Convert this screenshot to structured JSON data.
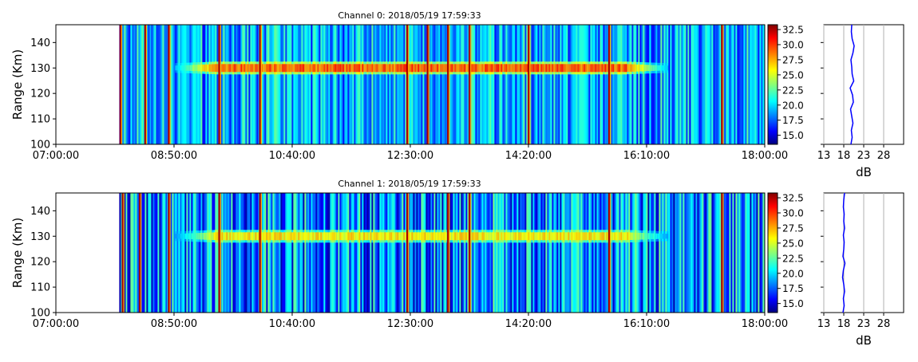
{
  "chart_data": [
    {
      "type": "heatmap",
      "title": "Channel 0: 2018/05/19 17:59:33",
      "ylabel": "Range (Km)",
      "x_ticks": [
        "07:00:00",
        "08:50:00",
        "10:40:00",
        "12:30:00",
        "14:20:00",
        "16:10:00",
        "18:00:00"
      ],
      "y_ticks": [
        100,
        110,
        120,
        130,
        140
      ],
      "ylim": [
        100,
        147
      ],
      "data_start": "07:59:00",
      "data_end": "18:00:00",
      "colorbar": {
        "range": [
          13.5,
          33.3
        ],
        "ticks": [
          "15.0",
          "17.5",
          "20.0",
          "22.5",
          "25.0",
          "27.5",
          "30.0",
          "32.5"
        ]
      },
      "echo_layer": {
        "range_km": 130,
        "start": "08:50:00",
        "end": "16:30:00",
        "peak_db": 30
      },
      "strong_streaks": [
        "08:00:00",
        "08:23:00",
        "08:45:00",
        "09:32:00",
        "10:10:00",
        "12:27:00",
        "12:46:00",
        "13:05:00",
        "13:25:00",
        "14:20:00",
        "15:35:00",
        "17:20:00"
      ],
      "profile": {
        "xlabel": "dB",
        "x_ticks": [
          13,
          18,
          23,
          28
        ],
        "xlim": [
          13,
          33
        ],
        "ylim": [
          100,
          147
        ],
        "values_db": [
          19.8,
          20.1,
          19.9,
          20.3,
          20.0,
          19.7,
          20.4,
          20.2,
          19.6,
          20.5,
          20.1,
          20.0,
          19.8,
          20.3,
          20.6,
          20.1,
          19.9,
          20.0
        ]
      }
    },
    {
      "type": "heatmap",
      "title": "Channel 1: 2018/05/19 17:59:33",
      "ylabel": "Range (Km)",
      "x_ticks": [
        "07:00:00",
        "08:50:00",
        "10:40:00",
        "12:30:00",
        "14:20:00",
        "16:10:00",
        "18:00:00"
      ],
      "y_ticks": [
        100,
        110,
        120,
        130,
        140
      ],
      "ylim": [
        100,
        147
      ],
      "data_start": "07:59:00",
      "data_end": "18:00:00",
      "colorbar": {
        "range": [
          13.5,
          33.3
        ],
        "ticks": [
          "15.0",
          "17.5",
          "20.0",
          "22.5",
          "25.0",
          "27.5",
          "30.0",
          "32.5"
        ]
      },
      "echo_layer": {
        "range_km": 130,
        "start": "08:50:00",
        "end": "16:30:00",
        "peak_db": 27
      },
      "strong_streaks": [
        "08:02:00",
        "08:18:00",
        "08:45:00",
        "09:32:00",
        "10:10:00",
        "12:27:00",
        "13:05:00",
        "13:25:00",
        "15:35:00",
        "17:20:00"
      ],
      "profile": {
        "xlabel": "dB",
        "x_ticks": [
          13,
          18,
          23,
          28
        ],
        "xlim": [
          13,
          33
        ],
        "ylim": [
          100,
          147
        ],
        "values_db": [
          17.8,
          18.1,
          17.9,
          18.2,
          18.0,
          17.7,
          17.9,
          18.3,
          17.8,
          18.0,
          18.1,
          17.9,
          18.2,
          18.0,
          18.1,
          17.9,
          18.0,
          18.2
        ]
      }
    }
  ]
}
